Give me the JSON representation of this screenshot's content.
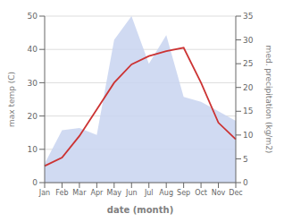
{
  "chart_data": {
    "type": "line",
    "categories": [
      "Jan",
      "Feb",
      "Mar",
      "Apr",
      "May",
      "Jun",
      "Jul",
      "Aug",
      "Sep",
      "Oct",
      "Nov",
      "Dec"
    ],
    "series": [
      {
        "type": "line",
        "color": "#cc3333",
        "values": [
          5.0,
          7.5,
          14.0,
          22.0,
          30.0,
          35.5,
          38.0,
          39.5,
          40.5,
          30.0,
          18.0,
          13.0
        ]
      },
      {
        "type": "area",
        "color": "#c8d4f0",
        "axis": "y2",
        "values": [
          4.0,
          11.0,
          11.5,
          10.0,
          30.0,
          35.0,
          25.0,
          31.0,
          18.0,
          17.0,
          15.0,
          13.0
        ]
      }
    ],
    "xlabel": "date (month)",
    "ylabel": "max temp (C)",
    "y2label": "med. precipitation (kg/m2)",
    "ylim": [
      0,
      50
    ],
    "yticks": [
      0,
      10,
      20,
      30,
      40,
      50
    ],
    "y2lim": [
      0,
      35
    ],
    "y2ticks": [
      0,
      5,
      10,
      15,
      20,
      25,
      30,
      35
    ],
    "grid": true
  }
}
